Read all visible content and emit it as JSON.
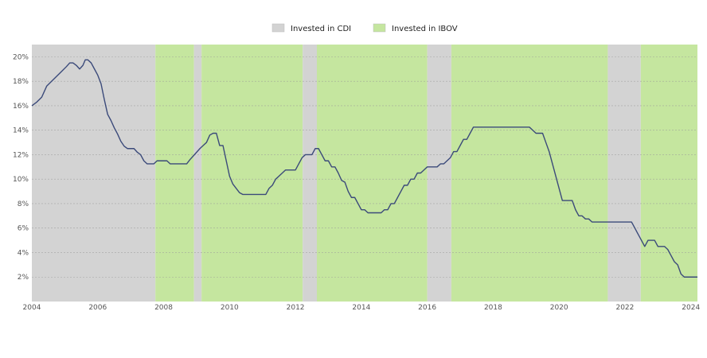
{
  "chart_data": {
    "type": "line",
    "title": "",
    "xlabel": "",
    "ylabel": "",
    "xlim": [
      2004.0,
      2024.2
    ],
    "ylim": [
      0,
      21
    ],
    "y_unit": "%",
    "grid": true,
    "legend_placement": "top-center",
    "x_ticks": [
      2004,
      2006,
      2008,
      2010,
      2012,
      2014,
      2016,
      2018,
      2020,
      2022,
      2024
    ],
    "y_ticks": [
      2,
      4,
      6,
      8,
      10,
      12,
      14,
      16,
      18,
      20
    ],
    "x_tick_labels": [
      "2004",
      "2006",
      "2008",
      "2010",
      "2012",
      "2014",
      "2016",
      "2018",
      "2020",
      "2022",
      "2024"
    ],
    "y_tick_labels": [
      "2%",
      "4%",
      "6%",
      "8%",
      "10%",
      "12%",
      "14%",
      "16%",
      "18%",
      "20%"
    ],
    "legend": [
      {
        "label": "Invested in CDI",
        "color": "#d3d3d3"
      },
      {
        "label": "Invested in IBOV",
        "color": "#c5e69f"
      }
    ],
    "regions": [
      {
        "label": "Invested in CDI",
        "x0": 2004.0,
        "x1": 2007.75
      },
      {
        "label": "Invested in IBOV",
        "x0": 2007.75,
        "x1": 2008.92
      },
      {
        "label": "Invested in CDI",
        "x0": 2008.92,
        "x1": 2009.15
      },
      {
        "label": "Invested in IBOV",
        "x0": 2009.15,
        "x1": 2012.22
      },
      {
        "label": "Invested in CDI",
        "x0": 2012.22,
        "x1": 2012.65
      },
      {
        "label": "Invested in IBOV",
        "x0": 2012.65,
        "x1": 2016.0
      },
      {
        "label": "Invested in CDI",
        "x0": 2016.0,
        "x1": 2016.73
      },
      {
        "label": "Invested in IBOV",
        "x0": 2016.73,
        "x1": 2021.48
      },
      {
        "label": "Invested in CDI",
        "x0": 2021.48,
        "x1": 2022.48
      },
      {
        "label": "Invested in IBOV",
        "x0": 2022.48,
        "x1": 2024.2
      }
    ],
    "series": [
      {
        "color": "#3b4a7a",
        "points": [
          [
            2004.0,
            16.0
          ],
          [
            2004.15,
            16.3
          ],
          [
            2004.3,
            16.7
          ],
          [
            2004.45,
            17.6
          ],
          [
            2004.6,
            18.0
          ],
          [
            2004.75,
            18.4
          ],
          [
            2004.9,
            18.8
          ],
          [
            2005.05,
            19.2
          ],
          [
            2005.15,
            19.5
          ],
          [
            2005.25,
            19.5
          ],
          [
            2005.35,
            19.3
          ],
          [
            2005.45,
            19.0
          ],
          [
            2005.55,
            19.3
          ],
          [
            2005.62,
            19.75
          ],
          [
            2005.7,
            19.75
          ],
          [
            2005.8,
            19.5
          ],
          [
            2005.9,
            19.0
          ],
          [
            2006.0,
            18.5
          ],
          [
            2006.1,
            17.8
          ],
          [
            2006.2,
            16.5
          ],
          [
            2006.3,
            15.3
          ],
          [
            2006.4,
            14.8
          ],
          [
            2006.5,
            14.2
          ],
          [
            2006.6,
            13.7
          ],
          [
            2006.7,
            13.1
          ],
          [
            2006.8,
            12.7
          ],
          [
            2006.9,
            12.5
          ],
          [
            2007.0,
            12.5
          ],
          [
            2007.1,
            12.5
          ],
          [
            2007.2,
            12.2
          ],
          [
            2007.3,
            12.0
          ],
          [
            2007.4,
            11.5
          ],
          [
            2007.5,
            11.25
          ],
          [
            2007.6,
            11.25
          ],
          [
            2007.7,
            11.25
          ],
          [
            2007.8,
            11.5
          ],
          [
            2007.9,
            11.5
          ],
          [
            2008.0,
            11.5
          ],
          [
            2008.1,
            11.5
          ],
          [
            2008.2,
            11.25
          ],
          [
            2008.3,
            11.25
          ],
          [
            2008.4,
            11.25
          ],
          [
            2008.5,
            11.25
          ],
          [
            2008.6,
            11.25
          ],
          [
            2008.7,
            11.25
          ],
          [
            2008.8,
            11.6
          ],
          [
            2008.9,
            11.9
          ],
          [
            2009.0,
            12.2
          ],
          [
            2009.1,
            12.5
          ],
          [
            2009.2,
            12.75
          ],
          [
            2009.3,
            13.0
          ],
          [
            2009.4,
            13.6
          ],
          [
            2009.5,
            13.75
          ],
          [
            2009.6,
            13.75
          ],
          [
            2009.7,
            12.75
          ],
          [
            2009.8,
            12.75
          ],
          [
            2009.9,
            11.5
          ],
          [
            2010.0,
            10.25
          ],
          [
            2010.1,
            9.6
          ],
          [
            2010.2,
            9.25
          ],
          [
            2010.3,
            8.9
          ],
          [
            2010.4,
            8.75
          ],
          [
            2010.5,
            8.75
          ],
          [
            2010.6,
            8.75
          ],
          [
            2010.7,
            8.75
          ],
          [
            2010.8,
            8.75
          ],
          [
            2010.9,
            8.75
          ],
          [
            2011.0,
            8.75
          ],
          [
            2011.1,
            8.75
          ],
          [
            2011.2,
            9.25
          ],
          [
            2011.3,
            9.5
          ],
          [
            2011.4,
            10.0
          ],
          [
            2011.5,
            10.25
          ],
          [
            2011.6,
            10.5
          ],
          [
            2011.7,
            10.75
          ],
          [
            2011.8,
            10.75
          ],
          [
            2011.9,
            10.75
          ],
          [
            2012.0,
            10.75
          ],
          [
            2012.1,
            11.25
          ],
          [
            2012.2,
            11.75
          ],
          [
            2012.3,
            12.0
          ],
          [
            2012.4,
            12.0
          ],
          [
            2012.5,
            12.0
          ],
          [
            2012.6,
            12.5
          ],
          [
            2012.7,
            12.5
          ],
          [
            2012.8,
            12.0
          ],
          [
            2012.9,
            11.5
          ],
          [
            2013.0,
            11.5
          ],
          [
            2013.1,
            11.0
          ],
          [
            2013.2,
            11.0
          ],
          [
            2013.3,
            10.5
          ],
          [
            2013.4,
            9.9
          ],
          [
            2013.5,
            9.75
          ],
          [
            2013.6,
            9.0
          ],
          [
            2013.7,
            8.5
          ],
          [
            2013.8,
            8.5
          ],
          [
            2013.9,
            8.0
          ],
          [
            2014.0,
            7.5
          ],
          [
            2014.1,
            7.5
          ],
          [
            2014.2,
            7.25
          ],
          [
            2014.3,
            7.25
          ],
          [
            2014.4,
            7.25
          ],
          [
            2014.5,
            7.25
          ],
          [
            2014.6,
            7.25
          ],
          [
            2014.7,
            7.5
          ],
          [
            2014.8,
            7.5
          ],
          [
            2014.9,
            8.0
          ],
          [
            2015.0,
            8.0
          ],
          [
            2015.1,
            8.5
          ],
          [
            2015.2,
            9.0
          ],
          [
            2015.3,
            9.5
          ],
          [
            2015.4,
            9.5
          ],
          [
            2015.5,
            10.0
          ],
          [
            2015.6,
            10.0
          ],
          [
            2015.7,
            10.5
          ],
          [
            2015.8,
            10.5
          ],
          [
            2015.9,
            10.75
          ],
          [
            2016.0,
            11.0
          ],
          [
            2016.1,
            11.0
          ],
          [
            2016.2,
            11.0
          ],
          [
            2016.3,
            11.0
          ],
          [
            2016.4,
            11.25
          ],
          [
            2016.5,
            11.25
          ],
          [
            2016.6,
            11.5
          ],
          [
            2016.7,
            11.75
          ],
          [
            2016.8,
            12.25
          ],
          [
            2016.9,
            12.25
          ],
          [
            2017.0,
            12.75
          ],
          [
            2017.1,
            13.25
          ],
          [
            2017.2,
            13.25
          ],
          [
            2017.3,
            13.75
          ],
          [
            2017.4,
            14.25
          ],
          [
            2017.5,
            14.25
          ],
          [
            2017.6,
            14.25
          ],
          [
            2017.7,
            14.25
          ],
          [
            2017.8,
            14.25
          ],
          [
            2017.9,
            14.25
          ],
          [
            2018.0,
            14.25
          ],
          [
            2018.1,
            14.25
          ],
          [
            2018.2,
            14.25
          ],
          [
            2018.3,
            14.25
          ],
          [
            2018.4,
            14.25
          ],
          [
            2018.5,
            14.25
          ],
          [
            2018.6,
            14.25
          ],
          [
            2018.7,
            14.25
          ],
          [
            2018.8,
            14.25
          ],
          [
            2018.9,
            14.25
          ],
          [
            2019.0,
            14.25
          ],
          [
            2019.1,
            14.25
          ],
          [
            2019.2,
            14.0
          ],
          [
            2019.3,
            13.75
          ],
          [
            2019.4,
            13.75
          ],
          [
            2019.5,
            13.75
          ],
          [
            2019.6,
            13.0
          ],
          [
            2019.7,
            12.25
          ],
          [
            2019.8,
            11.25
          ],
          [
            2019.9,
            10.25
          ],
          [
            2020.0,
            9.25
          ],
          [
            2020.1,
            8.25
          ],
          [
            2020.2,
            8.25
          ],
          [
            2020.3,
            8.25
          ],
          [
            2020.4,
            8.25
          ],
          [
            2020.5,
            7.5
          ],
          [
            2020.6,
            7.0
          ],
          [
            2020.7,
            7.0
          ],
          [
            2020.8,
            6.75
          ],
          [
            2020.9,
            6.75
          ],
          [
            2021.0,
            6.5
          ],
          [
            2021.1,
            6.5
          ],
          [
            2021.2,
            6.5
          ],
          [
            2021.3,
            6.5
          ],
          [
            2021.4,
            6.5
          ],
          [
            2021.5,
            6.5
          ],
          [
            2021.6,
            6.5
          ],
          [
            2021.7,
            6.5
          ],
          [
            2021.8,
            6.5
          ],
          [
            2021.9,
            6.5
          ],
          [
            2022.0,
            6.5
          ],
          [
            2022.1,
            6.5
          ],
          [
            2022.2,
            6.5
          ],
          [
            2022.3,
            6.0
          ],
          [
            2022.4,
            5.5
          ],
          [
            2022.5,
            5.0
          ],
          [
            2022.6,
            4.5
          ],
          [
            2022.7,
            5.0
          ],
          [
            2022.8,
            5.0
          ],
          [
            2022.9,
            5.0
          ],
          [
            2023.0,
            4.5
          ],
          [
            2023.1,
            4.5
          ],
          [
            2023.2,
            4.5
          ],
          [
            2023.3,
            4.25
          ],
          [
            2023.4,
            3.75
          ],
          [
            2023.5,
            3.25
          ],
          [
            2023.6,
            3.0
          ],
          [
            2023.7,
            2.25
          ],
          [
            2023.8,
            2.0
          ],
          [
            2023.9,
            2.0
          ],
          [
            2024.0,
            2.0
          ],
          [
            2024.2,
            2.0
          ]
        ]
      }
    ]
  }
}
